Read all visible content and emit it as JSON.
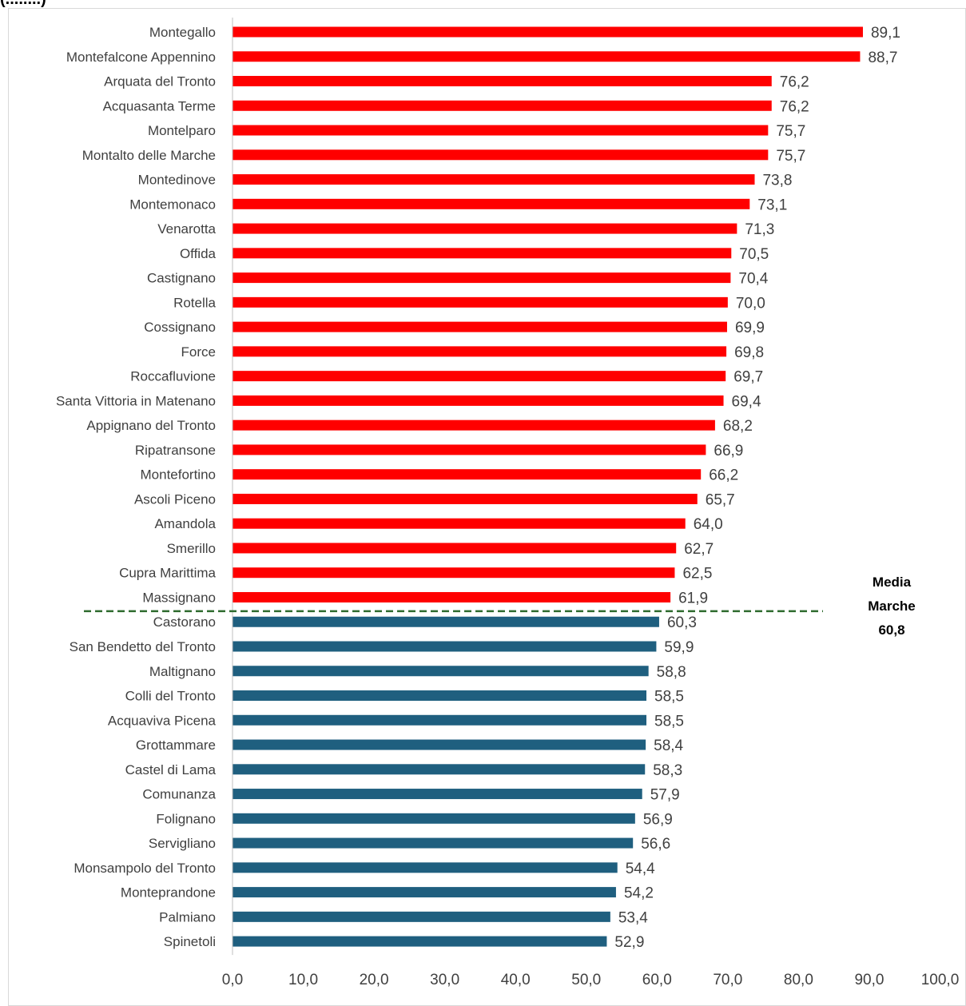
{
  "chart_data": {
    "type": "bar",
    "orientation": "horizontal",
    "categories": [
      "Montegallo",
      "Montefalcone Appennino",
      "Arquata del Tronto",
      "Acquasanta Terme",
      "Montelparo",
      "Montalto delle Marche",
      "Montedinove",
      "Montemonaco",
      "Venarotta",
      "Offida",
      "Castignano",
      "Rotella",
      "Cossignano",
      "Force",
      "Roccafluvione",
      "Santa Vittoria in Matenano",
      "Appignano del Tronto",
      "Ripatransone",
      "Montefortino",
      "Ascoli Piceno",
      "Amandola",
      "Smerillo",
      "Cupra Marittima",
      "Massignano",
      "Castorano",
      "San Bendetto del Tronto",
      "Maltignano",
      "Colli del Tronto",
      "Acquaviva Picena",
      "Grottammare",
      "Castel di Lama",
      "Comunanza",
      "Folignano",
      "Servigliano",
      "Monsampolo del Tronto",
      "Monteprandone",
      "Palmiano",
      "Spinetoli"
    ],
    "values": [
      89.1,
      88.7,
      76.2,
      76.2,
      75.7,
      75.7,
      73.8,
      73.1,
      71.3,
      70.5,
      70.4,
      70.0,
      69.9,
      69.8,
      69.7,
      69.4,
      68.2,
      66.9,
      66.2,
      65.7,
      64.0,
      62.7,
      62.5,
      61.9,
      60.3,
      59.9,
      58.8,
      58.5,
      58.5,
      58.4,
      58.3,
      57.9,
      56.9,
      56.6,
      54.4,
      54.2,
      53.4,
      52.9
    ],
    "value_labels": [
      "89,1",
      "88,7",
      "76,2",
      "76,2",
      "75,7",
      "75,7",
      "73,8",
      "73,1",
      "71,3",
      "70,5",
      "70,4",
      "70,0",
      "69,9",
      "69,8",
      "69,7",
      "69,4",
      "68,2",
      "66,9",
      "66,2",
      "65,7",
      "64,0",
      "62,7",
      "62,5",
      "61,9",
      "60,3",
      "59,9",
      "58,8",
      "58,5",
      "58,5",
      "58,4",
      "58,3",
      "57,9",
      "56,9",
      "56,6",
      "54,4",
      "54,2",
      "53,4",
      "52,9"
    ],
    "xlim": [
      0,
      100
    ],
    "x_ticks": [
      0,
      10,
      20,
      30,
      40,
      50,
      60,
      70,
      80,
      90,
      100
    ],
    "x_tick_labels": [
      "0,0",
      "10,0",
      "20,0",
      "30,0",
      "40,0",
      "50,0",
      "60,0",
      "70,0",
      "80,0",
      "90,0",
      "100,0"
    ],
    "reference_line": {
      "value": 60.8,
      "label_lines": [
        "Media",
        "Marche",
        "60,8"
      ],
      "style": "dashed",
      "color": "#2e6b2e"
    },
    "colors": {
      "above_reference": "#ff0000",
      "below_reference": "#1f5f7f"
    },
    "title": "",
    "xlabel": "",
    "ylabel": "",
    "grid": false,
    "top_text_fragment": "(........)"
  }
}
